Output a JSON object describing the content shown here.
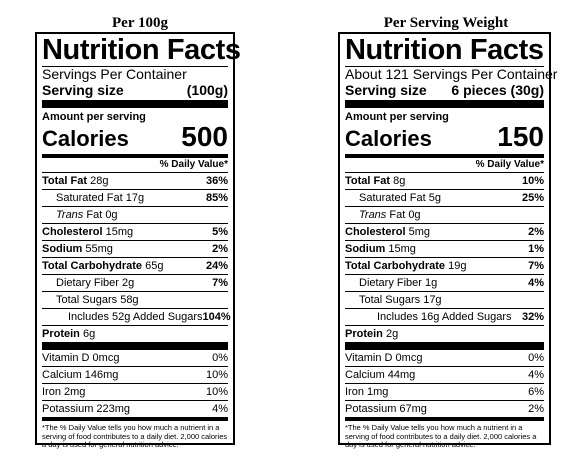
{
  "panels": [
    {
      "caption": "Per 100g",
      "title": "Nutrition Facts",
      "servings_line": "Servings Per Container",
      "serving_size_label": "Serving size",
      "serving_size_value": "(100g)",
      "amount_label": "Amount per serving",
      "calories_label": "Calories",
      "calories_value": "500",
      "dv_header": "% Daily Value*",
      "total_fat": {
        "label": "Total Fat",
        "amount": "28g",
        "pct": "36%"
      },
      "sat_fat": {
        "label": "Saturated Fat 17g",
        "pct": "85%"
      },
      "trans_fat": {
        "prefix": "Trans",
        "suffix": " Fat 0g"
      },
      "cholesterol": {
        "label": "Cholesterol",
        "amount": "15mg",
        "pct": "5%"
      },
      "sodium": {
        "label": "Sodium",
        "amount": "55mg",
        "pct": "2%"
      },
      "total_carb": {
        "label": "Total Carbohydrate",
        "amount": "65g",
        "pct": "24%"
      },
      "fiber": {
        "label": "Dietary Fiber 2g",
        "pct": "7%"
      },
      "total_sugars": {
        "label": "Total Sugars 58g"
      },
      "added_sugars": {
        "label": "Includes 52g Added Sugars",
        "pct": "104%"
      },
      "protein": {
        "label": "Protein",
        "amount": "6g"
      },
      "vitamin_d": {
        "label": "Vitamin D 0mcg",
        "pct": "0%"
      },
      "calcium": {
        "label": "Calcium 146mg",
        "pct": "10%"
      },
      "iron": {
        "label": "Iron 2mg",
        "pct": "10%"
      },
      "potassium": {
        "label": "Potassium 223mg",
        "pct": "4%"
      },
      "footnote": "*The % Daily Value tells you how much a nutrient in a serving of food contributes to a daily diet. 2,000 calories a day is used for general nutrition advice."
    },
    {
      "caption": "Per Serving Weight",
      "title": "Nutrition Facts",
      "servings_line": "About 121 Servings Per Container",
      "serving_size_label": "Serving size",
      "serving_size_value": "6 pieces (30g)",
      "amount_label": "Amount per serving",
      "calories_label": "Calories",
      "calories_value": "150",
      "dv_header": "% Daily Value*",
      "total_fat": {
        "label": "Total Fat",
        "amount": "8g",
        "pct": "10%"
      },
      "sat_fat": {
        "label": "Saturated Fat 5g",
        "pct": "25%"
      },
      "trans_fat": {
        "prefix": "Trans",
        "suffix": " Fat 0g"
      },
      "cholesterol": {
        "label": "Cholesterol",
        "amount": "5mg",
        "pct": "2%"
      },
      "sodium": {
        "label": "Sodium",
        "amount": "15mg",
        "pct": "1%"
      },
      "total_carb": {
        "label": "Total Carbohydrate",
        "amount": "19g",
        "pct": "7%"
      },
      "fiber": {
        "label": "Dietary Fiber 1g",
        "pct": "4%"
      },
      "total_sugars": {
        "label": "Total Sugars 17g"
      },
      "added_sugars": {
        "label": "Includes 16g Added Sugars",
        "pct": "32%"
      },
      "protein": {
        "label": "Protein",
        "amount": "2g"
      },
      "vitamin_d": {
        "label": "Vitamin D 0mcg",
        "pct": "0%"
      },
      "calcium": {
        "label": "Calcium 44mg",
        "pct": "4%"
      },
      "iron": {
        "label": "Iron 1mg",
        "pct": "6%"
      },
      "potassium": {
        "label": "Potassium 67mg",
        "pct": "2%"
      },
      "footnote": "*The % Daily Value tells you how much a nutrient in a serving of food contributes to a daily diet. 2,000 calories a day is used for general nutrition advice."
    }
  ]
}
